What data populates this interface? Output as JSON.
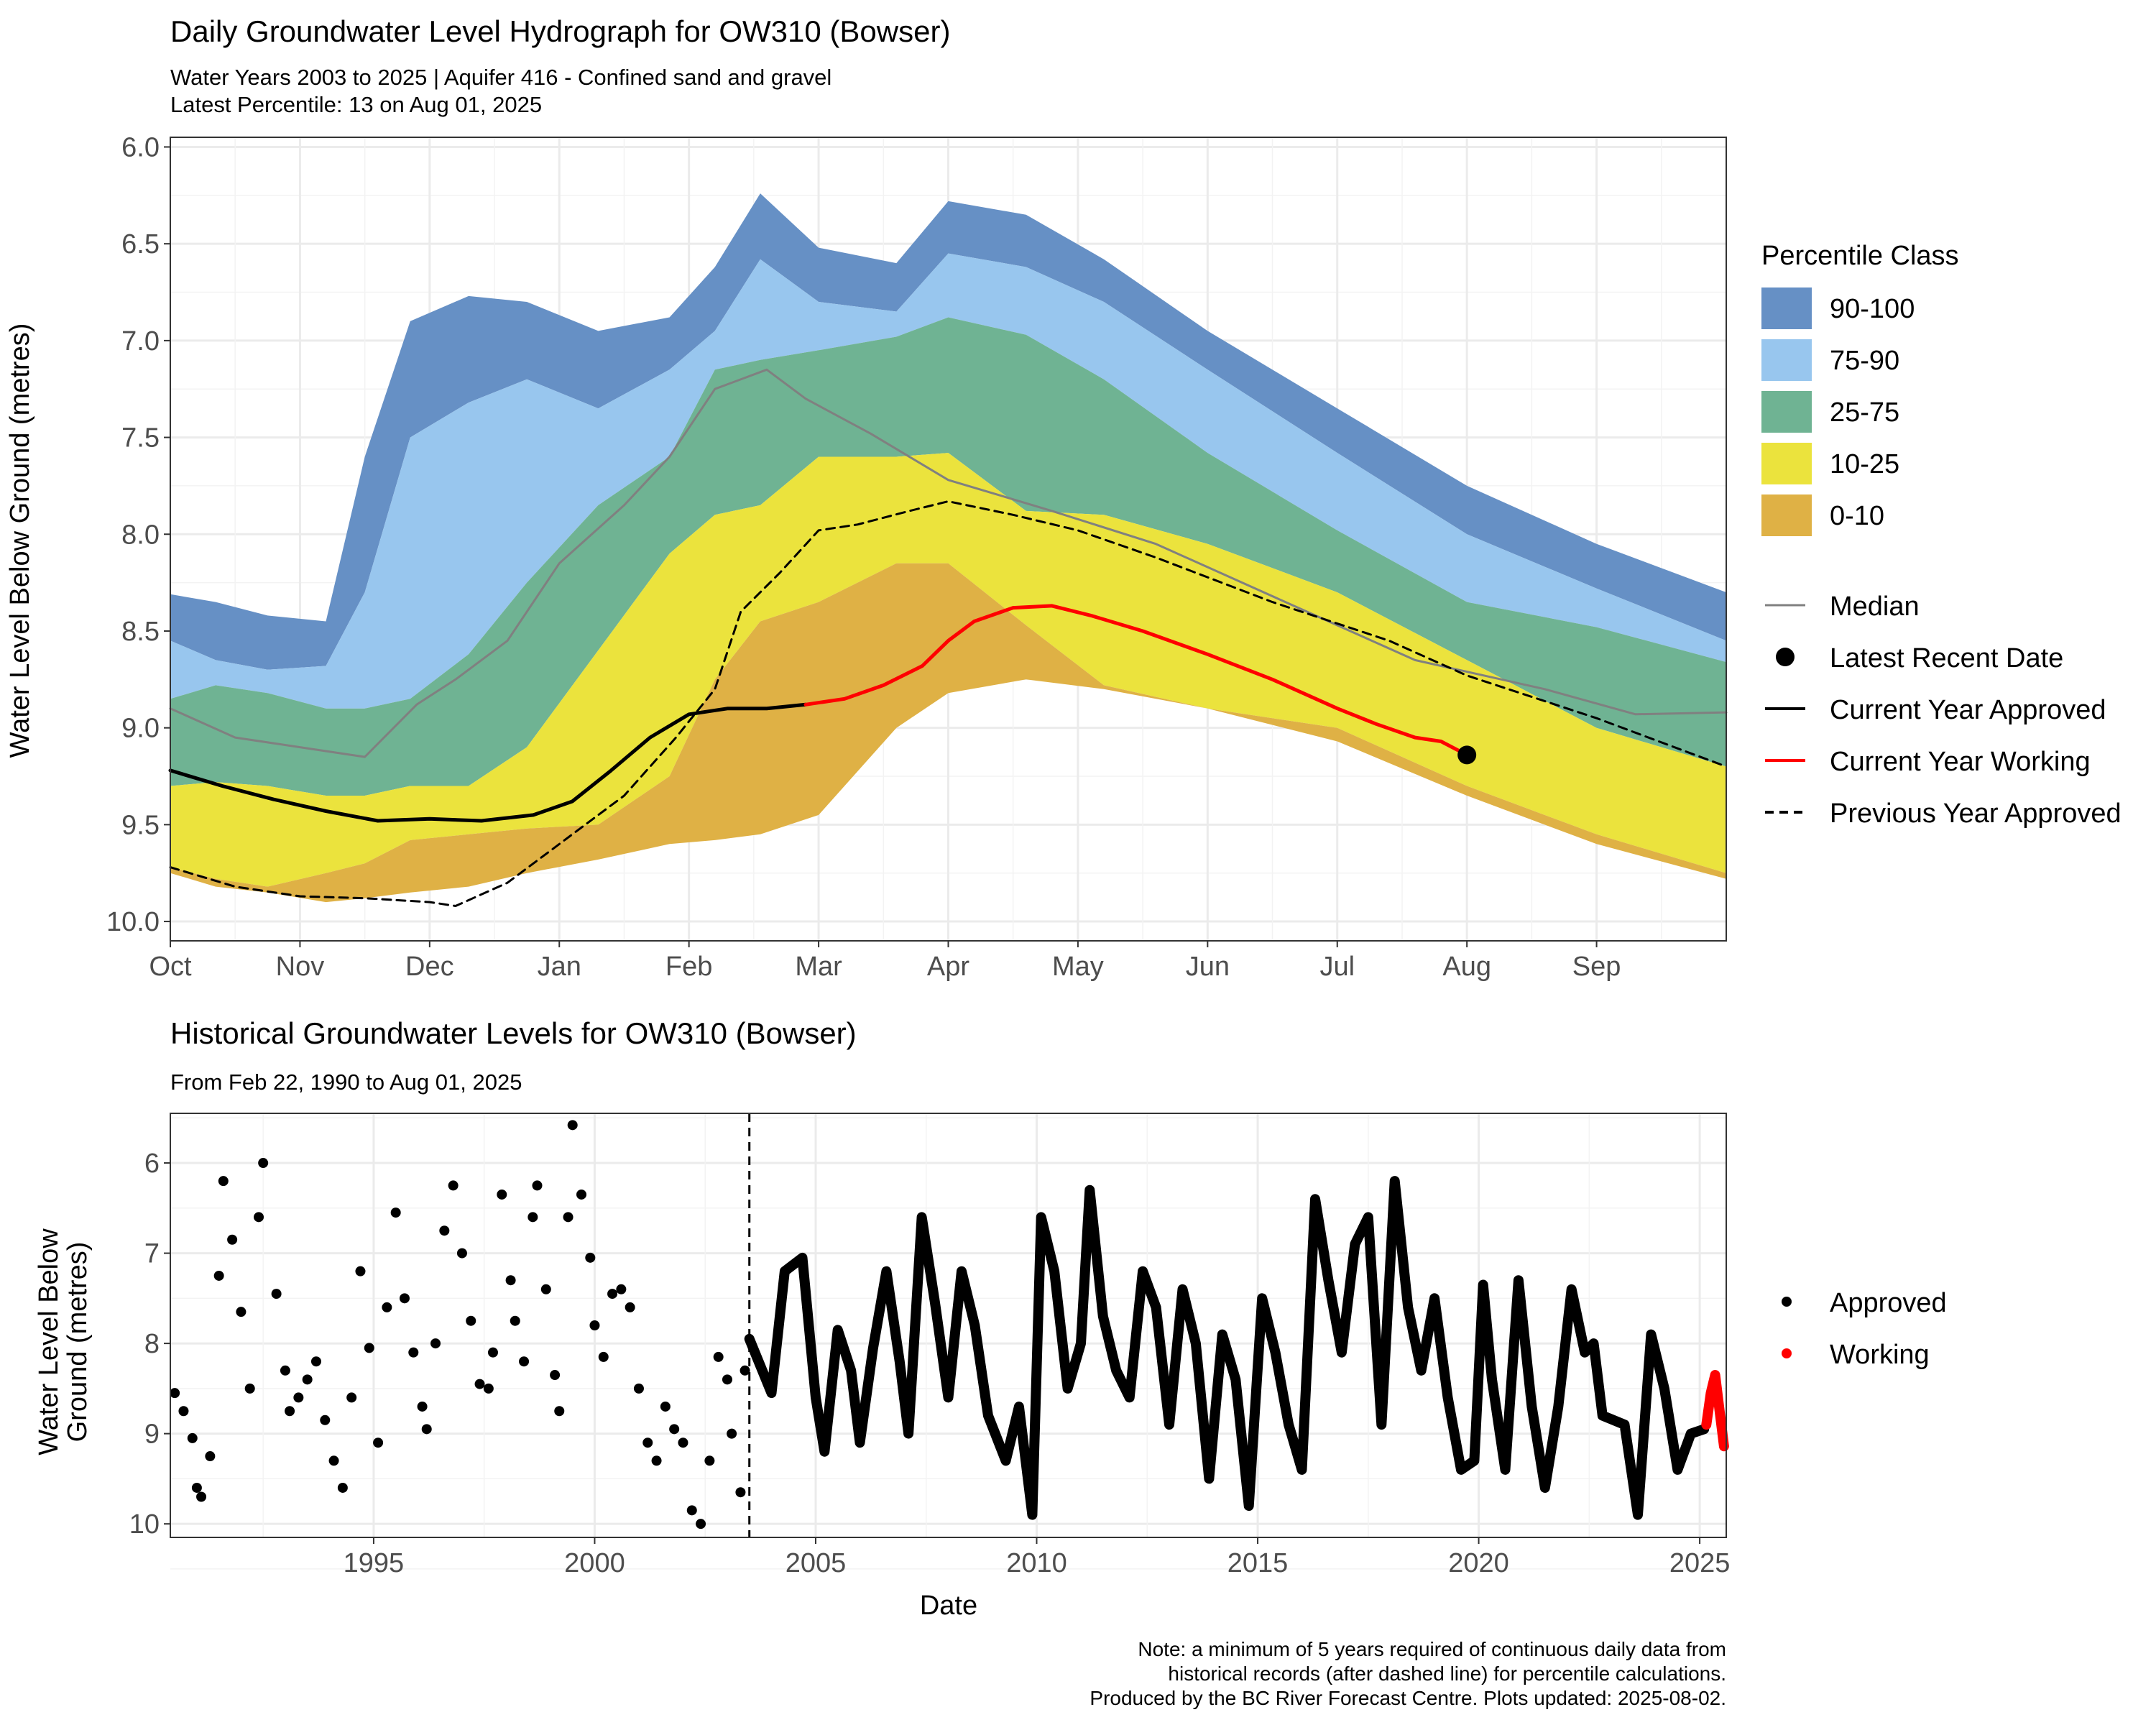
{
  "chart_data": [
    {
      "type": "area",
      "title": "Daily Groundwater Level Hydrograph for OW310 (Bowser)",
      "subtitle_lines": [
        "Water Years 2003 to 2025 | Aquifer 416 - Confined sand and gravel",
        "Latest Percentile: 13 on Aug 01, 2025"
      ],
      "ylabel": "Water Level Below Ground (metres)",
      "y_reversed": true,
      "ylim": [
        5.95,
        10.1
      ],
      "yticks": [
        6.0,
        6.5,
        7.0,
        7.5,
        8.0,
        8.5,
        9.0,
        9.5,
        10.0
      ],
      "ytick_labels": [
        "6.0",
        "6.5",
        "7.0",
        "7.5",
        "8.0",
        "8.5",
        "9.0",
        "9.5",
        "10.0"
      ],
      "xlim": [
        0,
        12
      ],
      "x_unit": "months from Oct 1",
      "xticks": [
        0,
        1,
        2,
        3,
        4,
        5,
        6,
        7,
        8,
        9,
        10,
        11
      ],
      "xtick_labels": [
        "Oct",
        "Nov",
        "Dec",
        "Jan",
        "Feb",
        "Mar",
        "Apr",
        "May",
        "Jun",
        "Jul",
        "Aug",
        "Sep"
      ],
      "grid": true,
      "x": [
        0,
        0.35,
        0.75,
        1.2,
        1.5,
        1.85,
        2.3,
        2.75,
        3.3,
        3.85,
        4.2,
        4.55,
        5.0,
        5.6,
        6.0,
        6.6,
        7.2,
        8.0,
        9.0,
        10.0,
        11.0,
        12.0
      ],
      "band_edges": [
        {
          "name": "p100",
          "values": [
            8.31,
            8.35,
            8.42,
            8.45,
            7.6,
            6.9,
            6.77,
            6.8,
            6.95,
            6.88,
            6.62,
            6.24,
            6.52,
            6.6,
            6.28,
            6.35,
            6.58,
            6.95,
            7.35,
            7.75,
            8.05,
            8.3
          ]
        },
        {
          "name": "p90",
          "values": [
            8.55,
            8.65,
            8.7,
            8.68,
            8.3,
            7.5,
            7.32,
            7.2,
            7.35,
            7.15,
            6.95,
            6.58,
            6.8,
            6.85,
            6.55,
            6.62,
            6.8,
            7.15,
            7.58,
            8.0,
            8.28,
            8.55
          ]
        },
        {
          "name": "p75",
          "values": [
            8.85,
            8.78,
            8.82,
            8.9,
            8.9,
            8.85,
            8.62,
            8.25,
            7.85,
            7.6,
            7.15,
            7.1,
            7.05,
            6.98,
            6.88,
            6.97,
            7.2,
            7.58,
            7.98,
            8.35,
            8.48,
            8.66
          ]
        },
        {
          "name": "p25",
          "values": [
            9.3,
            9.28,
            9.3,
            9.35,
            9.35,
            9.3,
            9.3,
            9.1,
            8.6,
            8.1,
            7.9,
            7.85,
            7.6,
            7.6,
            7.58,
            7.88,
            7.9,
            8.05,
            8.3,
            8.65,
            9.0,
            9.2
          ]
        },
        {
          "name": "p10",
          "values": [
            9.72,
            9.78,
            9.82,
            9.75,
            9.7,
            9.58,
            9.55,
            9.52,
            9.5,
            9.25,
            8.75,
            8.45,
            8.35,
            8.15,
            8.15,
            8.47,
            8.78,
            8.9,
            9.0,
            9.3,
            9.55,
            9.75
          ]
        },
        {
          "name": "p0",
          "values": [
            9.75,
            9.82,
            9.85,
            9.9,
            9.88,
            9.85,
            9.82,
            9.75,
            9.68,
            9.6,
            9.58,
            9.55,
            9.45,
            9.0,
            8.82,
            8.75,
            8.8,
            8.9,
            9.07,
            9.35,
            9.6,
            9.78
          ]
        }
      ],
      "series": [
        {
          "name": "Median",
          "x": [
            0,
            0.5,
            1.0,
            1.5,
            1.9,
            2.2,
            2.6,
            3.0,
            3.5,
            3.85,
            4.2,
            4.6,
            4.9,
            5.4,
            6.0,
            6.8,
            7.6,
            8.6,
            9.6,
            10.6,
            11.3,
            12.0
          ],
          "values": [
            8.9,
            9.05,
            9.1,
            9.15,
            8.88,
            8.75,
            8.55,
            8.15,
            7.85,
            7.6,
            7.25,
            7.15,
            7.3,
            7.48,
            7.72,
            7.88,
            8.05,
            8.35,
            8.65,
            8.8,
            8.93,
            8.92
          ]
        },
        {
          "name": "Current Year Approved",
          "x": [
            0,
            0.4,
            0.8,
            1.2,
            1.6,
            2.0,
            2.4,
            2.8,
            3.1,
            3.4,
            3.7,
            4.0,
            4.3,
            4.6,
            4.9
          ],
          "values": [
            9.22,
            9.3,
            9.37,
            9.43,
            9.48,
            9.47,
            9.48,
            9.45,
            9.38,
            9.22,
            9.05,
            8.93,
            8.9,
            8.9,
            8.88
          ]
        },
        {
          "name": "Current Year Working",
          "x": [
            4.9,
            5.2,
            5.5,
            5.8,
            6.0,
            6.2,
            6.5,
            6.8,
            7.1,
            7.5,
            8.0,
            8.5,
            9.0,
            9.3,
            9.6,
            9.8,
            10.0
          ],
          "values": [
            8.88,
            8.85,
            8.78,
            8.68,
            8.55,
            8.45,
            8.38,
            8.37,
            8.42,
            8.5,
            8.62,
            8.75,
            8.9,
            8.98,
            9.05,
            9.07,
            9.14
          ]
        },
        {
          "name": "Previous Year Approved",
          "x": [
            0,
            0.5,
            1.0,
            1.5,
            2.0,
            2.2,
            2.6,
            3.0,
            3.5,
            3.9,
            4.2,
            4.4,
            4.7,
            5.0,
            5.3,
            5.7,
            6.0,
            6.5,
            7.0,
            7.6,
            8.5,
            9.4,
            10.0,
            11.0,
            12.0
          ],
          "values": [
            9.72,
            9.82,
            9.87,
            9.88,
            9.9,
            9.92,
            9.8,
            9.6,
            9.35,
            9.05,
            8.8,
            8.4,
            8.2,
            7.98,
            7.95,
            7.88,
            7.83,
            7.9,
            7.98,
            8.12,
            8.35,
            8.55,
            8.73,
            8.95,
            9.2
          ]
        }
      ],
      "latest_point": {
        "x": 10.0,
        "value": 9.14
      },
      "legend_title": "Percentile Class",
      "legend_entries": [
        {
          "label": "90-100",
          "color": "#6690c5"
        },
        {
          "label": "75-90",
          "color": "#98c6ee"
        },
        {
          "label": "25-75",
          "color": "#6fb393"
        },
        {
          "label": "10-25",
          "color": "#ebe33d"
        },
        {
          "label": "0-10",
          "color": "#dfb145"
        }
      ],
      "line_legend": [
        {
          "label": "Median"
        },
        {
          "label": "Latest Recent Date"
        },
        {
          "label": "Current Year Approved"
        },
        {
          "label": "Current Year Working"
        },
        {
          "label": "Previous Year Approved"
        }
      ]
    },
    {
      "type": "scatter",
      "title": "Historical Groundwater Levels for OW310 (Bowser)",
      "subtitle": "From Feb 22, 1990 to Aug 01, 2025",
      "xlabel": "Date",
      "ylabel_lines": [
        "Water Level Below",
        "Ground (metres)"
      ],
      "y_reversed": true,
      "ylim": [
        5.45,
        10.15
      ],
      "yticks": [
        6,
        7,
        8,
        9,
        10
      ],
      "ytick_labels": [
        "6",
        "7",
        "8",
        "9",
        "10"
      ],
      "xlim": [
        1990.4,
        2025.6
      ],
      "xticks": [
        1995,
        2000,
        2005,
        2010,
        2015,
        2020,
        2025
      ],
      "xtick_labels": [
        "1995",
        "2000",
        "2005",
        "2010",
        "2015",
        "2020",
        "2025"
      ],
      "grid": true,
      "cutoff_year": 2003.5,
      "approved_sparse": {
        "x": [
          1990.5,
          1990.7,
          1990.9,
          1991.0,
          1991.1,
          1991.3,
          1991.5,
          1991.6,
          1991.8,
          1992.0,
          1992.2,
          1992.4,
          1992.5,
          1992.8,
          1993.0,
          1993.1,
          1993.3,
          1993.5,
          1993.7,
          1993.9,
          1994.1,
          1994.3,
          1994.5,
          1994.7,
          1994.9,
          1995.1,
          1995.3,
          1995.5,
          1995.7,
          1995.9,
          1996.1,
          1996.2,
          1996.4,
          1996.6,
          1996.8,
          1997.0,
          1997.2,
          1997.4,
          1997.6,
          1997.7,
          1997.9,
          1998.1,
          1998.2,
          1998.4,
          1998.6,
          1998.7,
          1998.9,
          1999.1,
          1999.2,
          1999.4,
          1999.5,
          1999.7,
          1999.9,
          2000.0,
          2000.2,
          2000.4,
          2000.6,
          2000.8,
          2001.0,
          2001.2,
          2001.4,
          2001.6,
          2001.8,
          2002.0,
          2002.2,
          2002.4,
          2002.6,
          2002.8,
          2003.0,
          2003.1,
          2003.3,
          2003.4
        ],
        "values": [
          8.55,
          8.75,
          9.05,
          9.6,
          9.7,
          9.25,
          7.25,
          6.2,
          6.85,
          7.65,
          8.5,
          6.6,
          6.0,
          7.45,
          8.3,
          8.75,
          8.6,
          8.4,
          8.2,
          8.85,
          9.3,
          9.6,
          8.6,
          7.2,
          8.05,
          9.1,
          7.6,
          6.55,
          7.5,
          8.1,
          8.7,
          8.95,
          8.0,
          6.75,
          6.25,
          7.0,
          7.75,
          8.45,
          8.5,
          8.1,
          6.35,
          7.3,
          7.75,
          8.2,
          6.6,
          6.25,
          7.4,
          8.35,
          8.75,
          6.6,
          5.58,
          6.35,
          7.05,
          7.8,
          8.15,
          7.45,
          7.4,
          7.6,
          8.5,
          9.1,
          9.3,
          8.7,
          8.95,
          9.1,
          9.85,
          10.0,
          9.3,
          8.15,
          8.4,
          9.0,
          9.65,
          8.3
        ]
      },
      "approved_continuous": {
        "x": [
          2003.5,
          2004.0,
          2004.3,
          2004.7,
          2005.0,
          2005.2,
          2005.5,
          2005.8,
          2006.0,
          2006.3,
          2006.6,
          2006.9,
          2007.1,
          2007.4,
          2007.7,
          2008.0,
          2008.3,
          2008.6,
          2008.9,
          2009.3,
          2009.6,
          2009.9,
          2010.1,
          2010.4,
          2010.7,
          2011.0,
          2011.2,
          2011.5,
          2011.8,
          2012.1,
          2012.4,
          2012.7,
          2013.0,
          2013.3,
          2013.6,
          2013.9,
          2014.2,
          2014.5,
          2014.8,
          2015.1,
          2015.4,
          2015.7,
          2016.0,
          2016.3,
          2016.6,
          2016.9,
          2017.2,
          2017.5,
          2017.8,
          2018.1,
          2018.4,
          2018.7,
          2019.0,
          2019.3,
          2019.6,
          2019.9,
          2020.1,
          2020.3,
          2020.6,
          2020.9,
          2021.2,
          2021.5,
          2021.8,
          2022.1,
          2022.4,
          2022.6,
          2022.8,
          2023.3,
          2023.6,
          2023.9,
          2024.2,
          2024.5,
          2024.8,
          2025.1
        ],
        "values": [
          7.95,
          8.55,
          7.2,
          7.05,
          8.6,
          9.2,
          7.85,
          8.3,
          9.1,
          8.05,
          7.2,
          8.2,
          9.0,
          6.6,
          7.55,
          8.6,
          7.2,
          7.8,
          8.8,
          9.3,
          8.7,
          9.9,
          6.6,
          7.2,
          8.5,
          8.0,
          6.3,
          7.7,
          8.3,
          8.6,
          7.2,
          7.6,
          8.9,
          7.4,
          8.0,
          9.5,
          7.9,
          8.4,
          9.8,
          7.5,
          8.1,
          8.9,
          9.4,
          6.4,
          7.3,
          8.1,
          6.9,
          6.6,
          8.9,
          6.2,
          7.6,
          8.3,
          7.5,
          8.6,
          9.4,
          9.3,
          7.35,
          8.4,
          9.4,
          7.3,
          8.7,
          9.6,
          8.7,
          7.4,
          8.1,
          8.0,
          8.8,
          8.9,
          9.9,
          7.9,
          8.5,
          9.4,
          9.0,
          8.95
        ]
      },
      "working": {
        "x": [
          2025.15,
          2025.25,
          2025.35,
          2025.45,
          2025.55
        ],
        "values": [
          8.9,
          8.55,
          8.35,
          8.75,
          9.14
        ]
      },
      "legend_entries": [
        {
          "label": "Approved",
          "color": "#000000"
        },
        {
          "label": "Working",
          "color": "#ff0000"
        }
      ]
    }
  ],
  "footnote_lines": [
    "Note: a minimum of 5 years required of continuous daily data from",
    "historical records (after dashed line) for percentile calculations.",
    "Produced by the BC River Forecast Centre. Plots updated: 2025-08-02."
  ],
  "colors": {
    "median": "#808080",
    "approved": "#000000",
    "working": "#ff0000",
    "grid": "#ebebeb",
    "panel_border": "#333333"
  }
}
